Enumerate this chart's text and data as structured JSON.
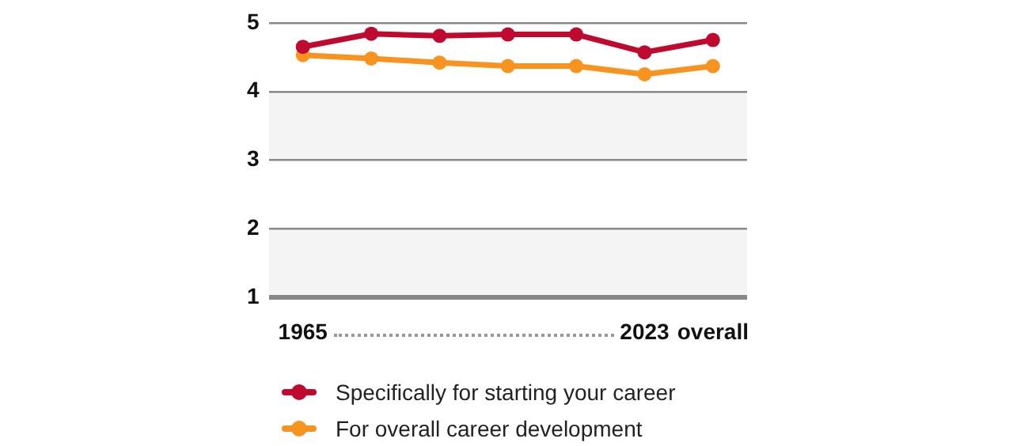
{
  "chart_data": {
    "type": "line",
    "categories": [
      "1965",
      null,
      null,
      null,
      null,
      "2023",
      "overall"
    ],
    "series": [
      {
        "name": "Specifically for starting your career",
        "color": "#c0092f",
        "values": [
          4.65,
          4.84,
          4.81,
          4.83,
          4.83,
          4.57,
          4.75
        ]
      },
      {
        "name": "For overall career development",
        "color": "#f7931e",
        "values": [
          4.53,
          4.48,
          4.42,
          4.37,
          4.37,
          4.25,
          4.37
        ]
      }
    ],
    "ylim": [
      1,
      5
    ],
    "yticks": [
      1,
      2,
      3,
      4,
      5
    ],
    "grid": "y",
    "marker": "circle",
    "line_style": "solid",
    "legend": "bottom",
    "bands": [
      {
        "axis": "y",
        "from": 1,
        "to": 2,
        "color": "#f4f4f4"
      },
      {
        "axis": "y",
        "from": 3,
        "to": 4,
        "color": "#f4f4f4"
      }
    ]
  }
}
